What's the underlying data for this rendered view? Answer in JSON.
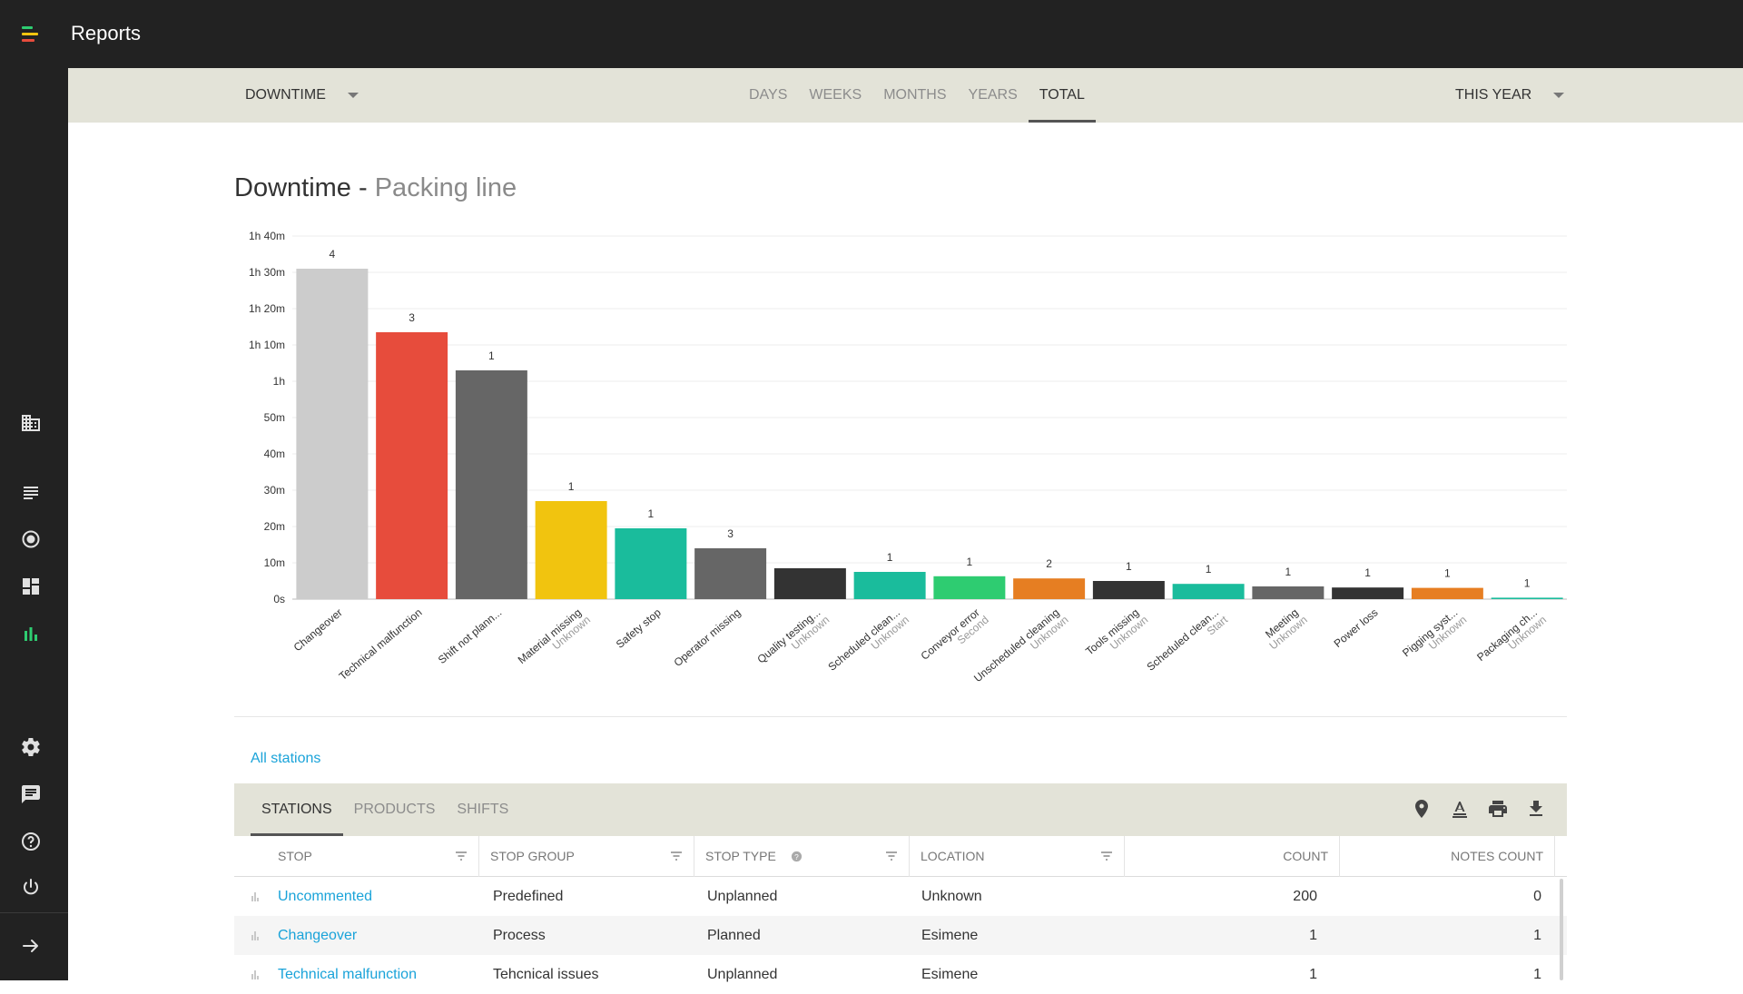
{
  "app": {
    "title": "Reports"
  },
  "filters": {
    "metric": "DOWNTIME",
    "period_tabs": [
      "DAYS",
      "WEEKS",
      "MONTHS",
      "YEARS",
      "TOTAL"
    ],
    "active_period": "TOTAL",
    "range": "THIS YEAR"
  },
  "page": {
    "title": "Downtime",
    "separator": " - ",
    "subtitle": "Packing line"
  },
  "chart_data": {
    "type": "bar",
    "title": "Downtime - Packing line",
    "xlabel": "",
    "ylabel": "",
    "yticks": [
      "0s",
      "10m",
      "20m",
      "30m",
      "40m",
      "50m",
      "1h",
      "1h 10m",
      "1h 20m",
      "1h 30m",
      "1h 40m"
    ],
    "ylim": [
      0,
      100
    ],
    "grid": true,
    "categories": [
      {
        "label": "Changeover",
        "sub": ""
      },
      {
        "label": "Technical malfunction",
        "sub": ""
      },
      {
        "label": "Shift not plann...",
        "sub": ""
      },
      {
        "label": "Material missing",
        "sub": "Unknown"
      },
      {
        "label": "Safety stop",
        "sub": ""
      },
      {
        "label": "Operator missing",
        "sub": ""
      },
      {
        "label": "Quality testing...",
        "sub": "Unknown"
      },
      {
        "label": "Scheduled clean...",
        "sub": "Unknown"
      },
      {
        "label": "Conveyor error",
        "sub": "Second"
      },
      {
        "label": "Unscheduled cleaning",
        "sub": "Unknown"
      },
      {
        "label": "Tools missing",
        "sub": "Unknown"
      },
      {
        "label": "Scheduled clean...",
        "sub": "Start"
      },
      {
        "label": "Meeting",
        "sub": "Unknown"
      },
      {
        "label": "Power loss",
        "sub": ""
      },
      {
        "label": "Pigging syst...",
        "sub": "Unknown"
      },
      {
        "label": "Packaging ch...",
        "sub": "Unknown"
      }
    ],
    "values": [
      91,
      73.5,
      63,
      27,
      19.5,
      14,
      8.5,
      7.5,
      6.3,
      5.7,
      5,
      4.2,
      3.5,
      3.2,
      3.1,
      0.4
    ],
    "counts": [
      "4",
      "3",
      "1",
      "1",
      "1",
      "3",
      "",
      "1",
      "1",
      "2",
      "1",
      "1",
      "1",
      "1",
      "1",
      "1"
    ],
    "colors": [
      "#cccccc",
      "#e74c3c",
      "#666666",
      "#f1c40f",
      "#1abc9c",
      "#666666",
      "#333333",
      "#1abc9c",
      "#2ecc71",
      "#e67e22",
      "#333333",
      "#1abc9c",
      "#666666",
      "#333333",
      "#e67e22",
      "#1abc9c"
    ]
  },
  "links": {
    "all_stations": "All stations"
  },
  "table_tabs": [
    "STATIONS",
    "PRODUCTS",
    "SHIFTS"
  ],
  "active_table_tab": "STATIONS",
  "table": {
    "columns": [
      "STOP",
      "STOP GROUP",
      "STOP TYPE",
      "LOCATION",
      "COUNT",
      "NOTES COUNT"
    ],
    "rows": [
      [
        "Uncommented",
        "Predefined",
        "Unplanned",
        "Unknown",
        "200",
        "0"
      ],
      [
        "Changeover",
        "Process",
        "Planned",
        "Esimene",
        "1",
        "1"
      ],
      [
        "Technical malfunction",
        "Tehcnical issues",
        "Unplanned",
        "Esimene",
        "1",
        "1"
      ]
    ]
  },
  "icons": {
    "sidebar": [
      "building-icon",
      "list-icon",
      "target-icon",
      "dashboard-icon",
      "bar-chart-icon",
      "gear-icon",
      "chat-icon",
      "help-icon",
      "power-icon",
      "arrow-right-icon"
    ],
    "toolbar": [
      "location-pin-icon",
      "text-format-icon",
      "print-icon",
      "download-icon"
    ]
  },
  "colors": {
    "accent": "#1aa3d9",
    "header_bg": "#222222",
    "bar_bg": "#e3e3d8",
    "chart_icon": "#2ecc71"
  }
}
